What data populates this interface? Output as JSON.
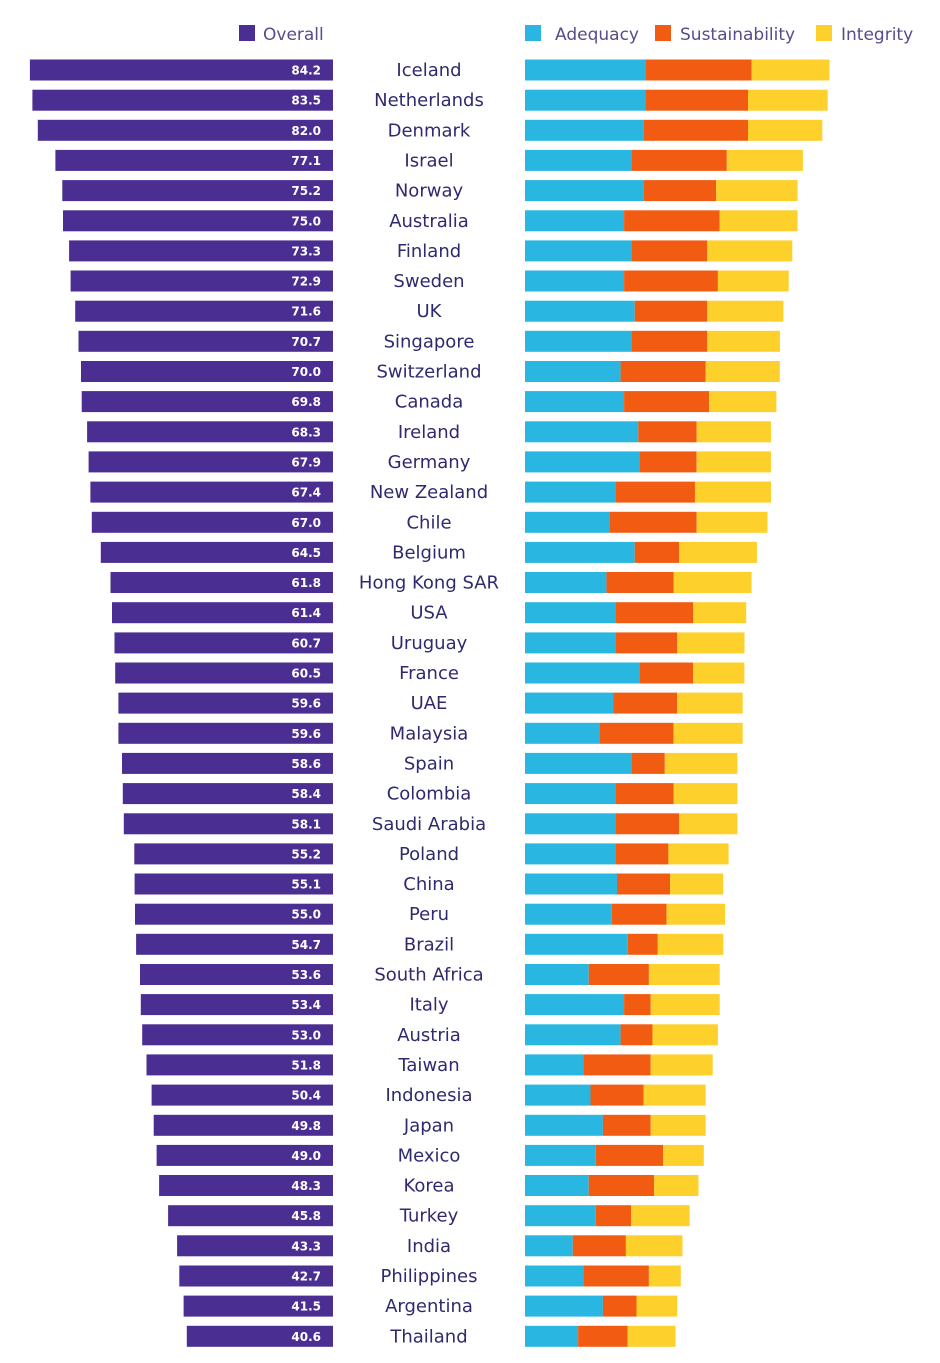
{
  "chart_data": {
    "type": "bar",
    "legend": {
      "overall_label": "Overall",
      "component_labels": [
        "Adequacy",
        "Sustainability",
        "Integrity"
      ]
    },
    "colors": {
      "overall": "#4b2e92",
      "adequacy": "#29b6e0",
      "sustainability": "#f25c12",
      "integrity": "#fdd02c"
    },
    "categories": [
      "Iceland",
      "Netherlands",
      "Denmark",
      "Israel",
      "Norway",
      "Australia",
      "Finland",
      "Sweden",
      "UK",
      "Singapore",
      "Switzerland",
      "Canada",
      "Ireland",
      "Germany",
      "New Zealand",
      "Chile",
      "Belgium",
      "Hong Kong SAR",
      "USA",
      "Uruguay",
      "France",
      "UAE",
      "Malaysia",
      "Spain",
      "Colombia",
      "Saudi Arabia",
      "Poland",
      "China",
      "Peru",
      "Brazil",
      "South Africa",
      "Italy",
      "Austria",
      "Taiwan",
      "Indonesia",
      "Japan",
      "Mexico",
      "Korea",
      "Turkey",
      "India",
      "Philippines",
      "Argentina",
      "Thailand"
    ],
    "overall": [
      "84.2",
      "83.5",
      "82.0",
      "77.1",
      "75.2",
      "75.0",
      "73.3",
      "72.9",
      "71.6",
      "70.7",
      "70.0",
      "69.8",
      "68.3",
      "67.9",
      "67.4",
      "67.0",
      "64.5",
      "61.8",
      "61.4",
      "60.7",
      "60.5",
      "59.6",
      "59.6",
      "58.6",
      "58.4",
      "58.1",
      "55.2",
      "55.1",
      "55.0",
      "54.7",
      "53.6",
      "53.4",
      "53.0",
      "51.8",
      "50.4",
      "49.8",
      "49.0",
      "48.3",
      "45.8",
      "43.3",
      "42.7",
      "41.5",
      "40.6"
    ],
    "series": [
      {
        "name": "Adequacy",
        "values": [
          34.0,
          34.0,
          33.5,
          30.0,
          33.5,
          28.0,
          30.0,
          28.0,
          31.0,
          30.0,
          27.0,
          28.0,
          32.0,
          32.5,
          25.5,
          24.0,
          31.0,
          23.0,
          25.5,
          25.5,
          32.5,
          25.0,
          21.0,
          30.0,
          25.5,
          25.5,
          25.5,
          26.0,
          24.5,
          29.0,
          18.0,
          28.0,
          27.0,
          16.5,
          18.5,
          22.0,
          20.0,
          18.0,
          20.0,
          13.5,
          16.5,
          22.0,
          15.0
        ]
      },
      {
        "name": "Sustainability",
        "values": [
          30.0,
          29.0,
          29.5,
          27.0,
          20.5,
          27.0,
          21.5,
          26.5,
          20.5,
          21.5,
          24.0,
          24.0,
          16.5,
          16.0,
          22.5,
          24.5,
          12.5,
          19.0,
          22.0,
          17.5,
          15.0,
          18.0,
          21.0,
          9.5,
          16.5,
          18.0,
          15.0,
          15.0,
          15.5,
          8.5,
          17.0,
          7.5,
          9.0,
          19.0,
          15.0,
          13.5,
          19.0,
          18.5,
          10.0,
          15.0,
          18.5,
          9.5,
          14.0
        ]
      },
      {
        "name": "Integrity",
        "values": [
          22.0,
          22.5,
          21.0,
          21.5,
          23.0,
          22.0,
          24.0,
          20.0,
          21.5,
          20.5,
          21.0,
          19.0,
          21.0,
          21.0,
          21.5,
          20.0,
          22.0,
          22.0,
          15.0,
          19.0,
          14.5,
          18.5,
          19.5,
          20.5,
          18.0,
          16.5,
          17.0,
          15.0,
          16.5,
          18.5,
          20.0,
          19.5,
          18.5,
          17.5,
          17.5,
          15.5,
          11.5,
          12.5,
          16.5,
          16.0,
          9.0,
          11.5,
          13.5
        ]
      }
    ]
  }
}
